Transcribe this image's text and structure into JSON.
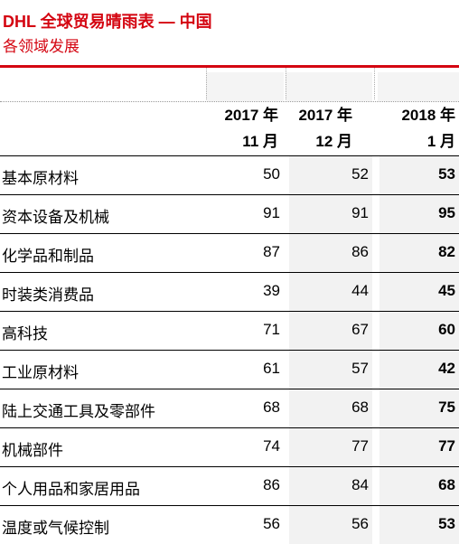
{
  "header": {
    "title": "DHL 全球贸易晴雨表 — 中国",
    "subtitle": "各领域发展"
  },
  "columns": [
    {
      "line1": "2017 年",
      "line2": "11 月"
    },
    {
      "line1": "2017 年",
      "line2": "12 月"
    },
    {
      "line1": "2018 年",
      "line2": "1 月"
    }
  ],
  "rows": [
    {
      "label": "基本原材料",
      "values": [
        "50",
        "52",
        "53"
      ]
    },
    {
      "label": "资本设备及机械",
      "values": [
        "91",
        "91",
        "95"
      ]
    },
    {
      "label": "化学品和制品",
      "values": [
        "87",
        "86",
        "82"
      ]
    },
    {
      "label": "时装类消费品",
      "values": [
        "39",
        "44",
        "45"
      ]
    },
    {
      "label": "高科技",
      "values": [
        "71",
        "67",
        "60"
      ]
    },
    {
      "label": "工业原材料",
      "values": [
        "61",
        "57",
        "42"
      ]
    },
    {
      "label": "陆上交通工具及零部件",
      "values": [
        "68",
        "68",
        "75"
      ]
    },
    {
      "label": "机械部件",
      "values": [
        "74",
        "77",
        "77"
      ]
    },
    {
      "label": "个人用品和家居用品",
      "values": [
        "86",
        "84",
        "68"
      ]
    },
    {
      "label": "温度或气候控制",
      "values": [
        "56",
        "56",
        "53"
      ]
    }
  ],
  "colors": {
    "accent": "#d40511"
  }
}
